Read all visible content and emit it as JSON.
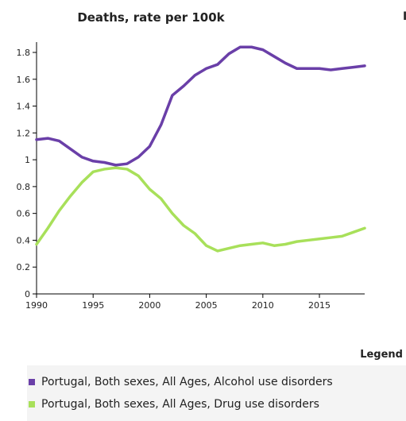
{
  "chart_data": {
    "type": "line",
    "title": "Deaths, rate per 100k",
    "xlim": [
      1990,
      2019
    ],
    "ylim": [
      0,
      1.85
    ],
    "x_ticks": [
      "1990",
      "1995",
      "2000",
      "2005",
      "2010",
      "2015"
    ],
    "y_ticks": [
      "0",
      "0.2",
      "0.4",
      "0.6",
      "0.8",
      "1",
      "1.2",
      "1.4",
      "1.6",
      "1.8"
    ],
    "x": [
      1990,
      1991,
      1992,
      1993,
      1994,
      1995,
      1996,
      1997,
      1998,
      1999,
      2000,
      2001,
      2002,
      2003,
      2004,
      2005,
      2006,
      2007,
      2008,
      2009,
      2010,
      2011,
      2012,
      2013,
      2014,
      2015,
      2016,
      2017,
      2018,
      2019
    ],
    "series": [
      {
        "name": "Portugal, Both sexes, All Ages, Alcohol use disorders",
        "color": "#6a3fa8",
        "values": [
          1.15,
          1.16,
          1.14,
          1.08,
          1.02,
          0.99,
          0.98,
          0.96,
          0.97,
          1.02,
          1.1,
          1.26,
          1.48,
          1.55,
          1.63,
          1.68,
          1.71,
          1.79,
          1.84,
          1.84,
          1.82,
          1.77,
          1.72,
          1.68,
          1.68,
          1.68,
          1.67,
          1.68,
          1.69,
          1.7
        ]
      },
      {
        "name": "Portugal, Both sexes, All Ages, Drug use disorders",
        "color": "#a8e05a",
        "values": [
          0.37,
          0.49,
          0.62,
          0.73,
          0.83,
          0.91,
          0.93,
          0.94,
          0.93,
          0.88,
          0.78,
          0.71,
          0.6,
          0.51,
          0.45,
          0.36,
          0.32,
          0.34,
          0.36,
          0.37,
          0.38,
          0.36,
          0.37,
          0.39,
          0.4,
          0.41,
          0.42,
          0.43,
          0.46,
          0.49
        ]
      }
    ],
    "legend_title": "Legend",
    "legend_position": "bottom",
    "grid": false
  },
  "clipped_text": "I"
}
